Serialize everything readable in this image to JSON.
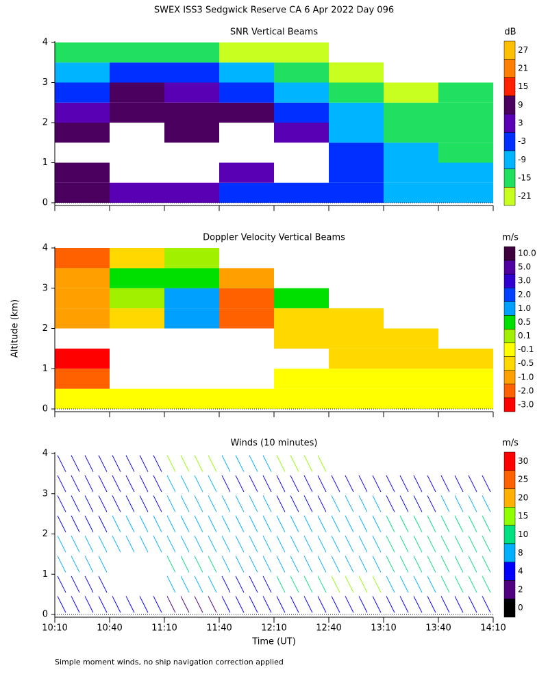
{
  "title": "SWEX ISS3 Sedgwick Reserve CA   6 Apr 2022 Day 096",
  "footer": "Simple moment winds, no ship navigation correction applied",
  "chart_data": [
    {
      "type": "heatmap",
      "title": "SNR Vertical Beams",
      "xlim": [
        0,
        240
      ],
      "ylim": [
        0,
        4
      ],
      "yticks": [
        0,
        1,
        2,
        3,
        4
      ],
      "x_edges": [
        0,
        30,
        60,
        90,
        120,
        150,
        180,
        210,
        240
      ],
      "alt_edges": [
        0,
        0.5,
        1,
        1.5,
        2,
        2.5,
        3,
        3.5,
        4
      ],
      "values": [
        [
          9,
          3,
          3,
          -3,
          -3,
          -3,
          -9,
          -9
        ],
        [
          9,
          null,
          null,
          3,
          null,
          -3,
          -9,
          -9
        ],
        [
          null,
          null,
          null,
          null,
          null,
          -3,
          -9,
          -15
        ],
        [
          9,
          null,
          9,
          null,
          3,
          -9,
          -15,
          -15
        ],
        [
          3,
          9,
          9,
          9,
          -3,
          -9,
          -15,
          -15
        ],
        [
          -3,
          9,
          3,
          -3,
          -9,
          -15,
          -21,
          -15
        ],
        [
          -9,
          -3,
          -3,
          -9,
          -15,
          -21,
          null,
          null
        ],
        [
          -15,
          -15,
          -15,
          -21,
          -21,
          null,
          null,
          null
        ]
      ],
      "colorbar": {
        "label": "dB",
        "levels": [
          {
            "label": "27",
            "color": "#ffc000"
          },
          {
            "label": "21",
            "color": "#ff8000"
          },
          {
            "label": "15",
            "color": "#ff2000"
          },
          {
            "label": "9",
            "color": "#4b0060"
          },
          {
            "label": "3",
            "color": "#5a00b4"
          },
          {
            "label": "-3",
            "color": "#0030ff"
          },
          {
            "label": "-9",
            "color": "#00b4ff"
          },
          {
            "label": "-15",
            "color": "#20e060"
          },
          {
            "label": "-21",
            "color": "#c8ff20"
          }
        ]
      }
    },
    {
      "type": "heatmap",
      "title": "Doppler Velocity Vertical Beams",
      "ylabel": "Altitude (km)",
      "xlim": [
        0,
        240
      ],
      "ylim": [
        0,
        4
      ],
      "yticks": [
        0,
        1,
        2,
        3,
        4
      ],
      "x_edges": [
        0,
        30,
        60,
        90,
        120,
        150,
        180,
        210,
        240
      ],
      "alt_edges": [
        0,
        0.5,
        1,
        1.5,
        2,
        2.5,
        3,
        3.5,
        4
      ],
      "values": [
        [
          -0.1,
          -0.1,
          -0.1,
          -0.1,
          -0.1,
          -0.1,
          -0.1,
          -0.1
        ],
        [
          -2.0,
          null,
          null,
          null,
          -0.1,
          -0.1,
          -0.1,
          -0.1
        ],
        [
          -3.0,
          null,
          null,
          null,
          null,
          -0.5,
          -0.5,
          -0.5
        ],
        [
          null,
          null,
          null,
          null,
          -0.5,
          -0.5,
          -0.5,
          null
        ],
        [
          -1.0,
          -0.5,
          1.0,
          -2.0,
          -0.5,
          -0.5,
          null,
          null
        ],
        [
          -1.0,
          0.1,
          1.0,
          -2.0,
          0.5,
          null,
          null,
          null
        ],
        [
          -1.0,
          0.5,
          0.5,
          -1.0,
          null,
          null,
          null,
          null
        ],
        [
          -2.0,
          -0.5,
          0.1,
          null,
          null,
          null,
          null,
          null
        ]
      ],
      "colorbar": {
        "label": "m/s",
        "levels": [
          {
            "label": "10.0",
            "color": "#3c003c"
          },
          {
            "label": "5.0",
            "color": "#5000a0"
          },
          {
            "label": "3.0",
            "color": "#3000d0"
          },
          {
            "label": "2.0",
            "color": "#0040ff"
          },
          {
            "label": "1.0",
            "color": "#00a0ff"
          },
          {
            "label": "0.5",
            "color": "#00e000"
          },
          {
            "label": "0.1",
            "color": "#a0f000"
          },
          {
            "label": "-0.1",
            "color": "#ffff00"
          },
          {
            "label": "-0.5",
            "color": "#ffd800"
          },
          {
            "label": "-1.0",
            "color": "#ffa000"
          },
          {
            "label": "-2.0",
            "color": "#ff6000"
          },
          {
            "label": "-3.0",
            "color": "#ff0000"
          }
        ]
      }
    },
    {
      "type": "wind",
      "title": "Winds (10 minutes)",
      "xlabel": "Time (UT)",
      "xlim": [
        0,
        240
      ],
      "ylim": [
        0,
        4
      ],
      "yticks": [
        0,
        1,
        2,
        3,
        4
      ],
      "xticks": [
        {
          "value": 0,
          "label": "10:10"
        },
        {
          "value": 30,
          "label": "10:40"
        },
        {
          "value": 60,
          "label": "11:10"
        },
        {
          "value": 90,
          "label": "11:40"
        },
        {
          "value": 120,
          "label": "12:10"
        },
        {
          "value": 150,
          "label": "12:40"
        },
        {
          "value": 180,
          "label": "13:10"
        },
        {
          "value": 210,
          "label": "13:40"
        },
        {
          "value": 240,
          "label": "14:10"
        }
      ],
      "x_edges": [
        0,
        30,
        60,
        90,
        120,
        150,
        180,
        210,
        240
      ],
      "alt_edges": [
        0,
        0.5,
        1,
        1.5,
        2,
        2.5,
        3,
        3.5,
        4
      ],
      "values": [
        [
          4,
          4,
          2,
          4,
          4,
          4,
          4,
          4
        ],
        [
          4,
          null,
          8,
          4,
          10,
          15,
          8,
          10
        ],
        [
          8,
          null,
          10,
          8,
          8,
          8,
          10,
          10
        ],
        [
          8,
          8,
          8,
          8,
          8,
          8,
          10,
          10
        ],
        [
          4,
          8,
          8,
          8,
          8,
          8,
          10,
          10
        ],
        [
          4,
          4,
          8,
          8,
          4,
          8,
          4,
          8
        ],
        [
          4,
          4,
          8,
          4,
          4,
          4,
          4,
          4
        ],
        [
          4,
          4,
          15,
          8,
          15,
          null,
          null,
          null
        ]
      ],
      "colorbar": {
        "label": "m/s",
        "levels": [
          {
            "label": "30",
            "color": "#ff0000"
          },
          {
            "label": "25",
            "color": "#ff6000"
          },
          {
            "label": "20",
            "color": "#ffb000"
          },
          {
            "label": "15",
            "color": "#90ff00"
          },
          {
            "label": "10",
            "color": "#00e080"
          },
          {
            "label": "8",
            "color": "#00b0ff"
          },
          {
            "label": "4",
            "color": "#0000ff"
          },
          {
            "label": "2",
            "color": "#500080"
          },
          {
            "label": "0",
            "color": "#000000"
          }
        ]
      }
    }
  ]
}
